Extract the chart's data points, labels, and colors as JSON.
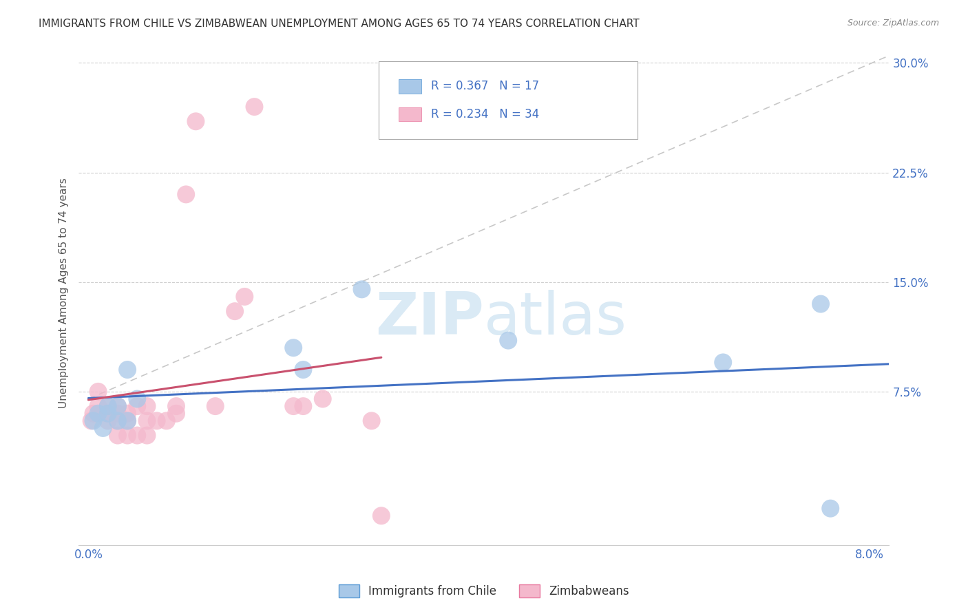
{
  "title": "IMMIGRANTS FROM CHILE VS ZIMBABWEAN UNEMPLOYMENT AMONG AGES 65 TO 74 YEARS CORRELATION CHART",
  "source": "Source: ZipAtlas.com",
  "ylabel": "Unemployment Among Ages 65 to 74 years",
  "xlim": [
    -0.001,
    0.082
  ],
  "ylim": [
    -0.03,
    0.315
  ],
  "xticks": [
    0.0,
    0.01,
    0.02,
    0.03,
    0.04,
    0.05,
    0.06,
    0.07,
    0.08
  ],
  "xticklabels": [
    "0.0%",
    "",
    "",
    "",
    "",
    "",
    "",
    "",
    "8.0%"
  ],
  "yticks": [
    0.075,
    0.15,
    0.225,
    0.3
  ],
  "yticklabels": [
    "7.5%",
    "15.0%",
    "22.5%",
    "30.0%"
  ],
  "chile_R": 0.367,
  "chile_N": 17,
  "zimbabwe_R": 0.234,
  "zimbabwe_N": 34,
  "chile_color": "#a8c8e8",
  "zimbabwe_color": "#f4b8cc",
  "chile_edge_color": "#5b9bd5",
  "zimbabwe_edge_color": "#e87aa0",
  "chile_line_color": "#4472c4",
  "zimbabwe_line_color": "#c9516e",
  "ref_line_color": "#c8c8c8",
  "watermark_color": "#daeaf5",
  "chile_points_x": [
    0.0005,
    0.001,
    0.0015,
    0.002,
    0.002,
    0.003,
    0.003,
    0.004,
    0.004,
    0.005,
    0.021,
    0.022,
    0.028,
    0.043,
    0.065,
    0.075,
    0.076
  ],
  "chile_points_y": [
    0.055,
    0.06,
    0.05,
    0.06,
    0.065,
    0.055,
    0.065,
    0.055,
    0.09,
    0.07,
    0.105,
    0.09,
    0.145,
    0.11,
    0.095,
    0.135,
    -0.005
  ],
  "zimbabwe_points_x": [
    0.0003,
    0.0005,
    0.001,
    0.001,
    0.002,
    0.002,
    0.002,
    0.003,
    0.003,
    0.003,
    0.003,
    0.004,
    0.004,
    0.004,
    0.005,
    0.005,
    0.006,
    0.006,
    0.006,
    0.007,
    0.008,
    0.009,
    0.009,
    0.01,
    0.011,
    0.013,
    0.015,
    0.016,
    0.017,
    0.021,
    0.022,
    0.024,
    0.029,
    0.03
  ],
  "zimbabwe_points_y": [
    0.055,
    0.06,
    0.065,
    0.075,
    0.055,
    0.06,
    0.065,
    0.045,
    0.055,
    0.06,
    0.065,
    0.045,
    0.055,
    0.06,
    0.045,
    0.065,
    0.045,
    0.055,
    0.065,
    0.055,
    0.055,
    0.06,
    0.065,
    0.21,
    0.26,
    0.065,
    0.13,
    0.14,
    0.27,
    0.065,
    0.065,
    0.07,
    0.055,
    -0.01
  ]
}
